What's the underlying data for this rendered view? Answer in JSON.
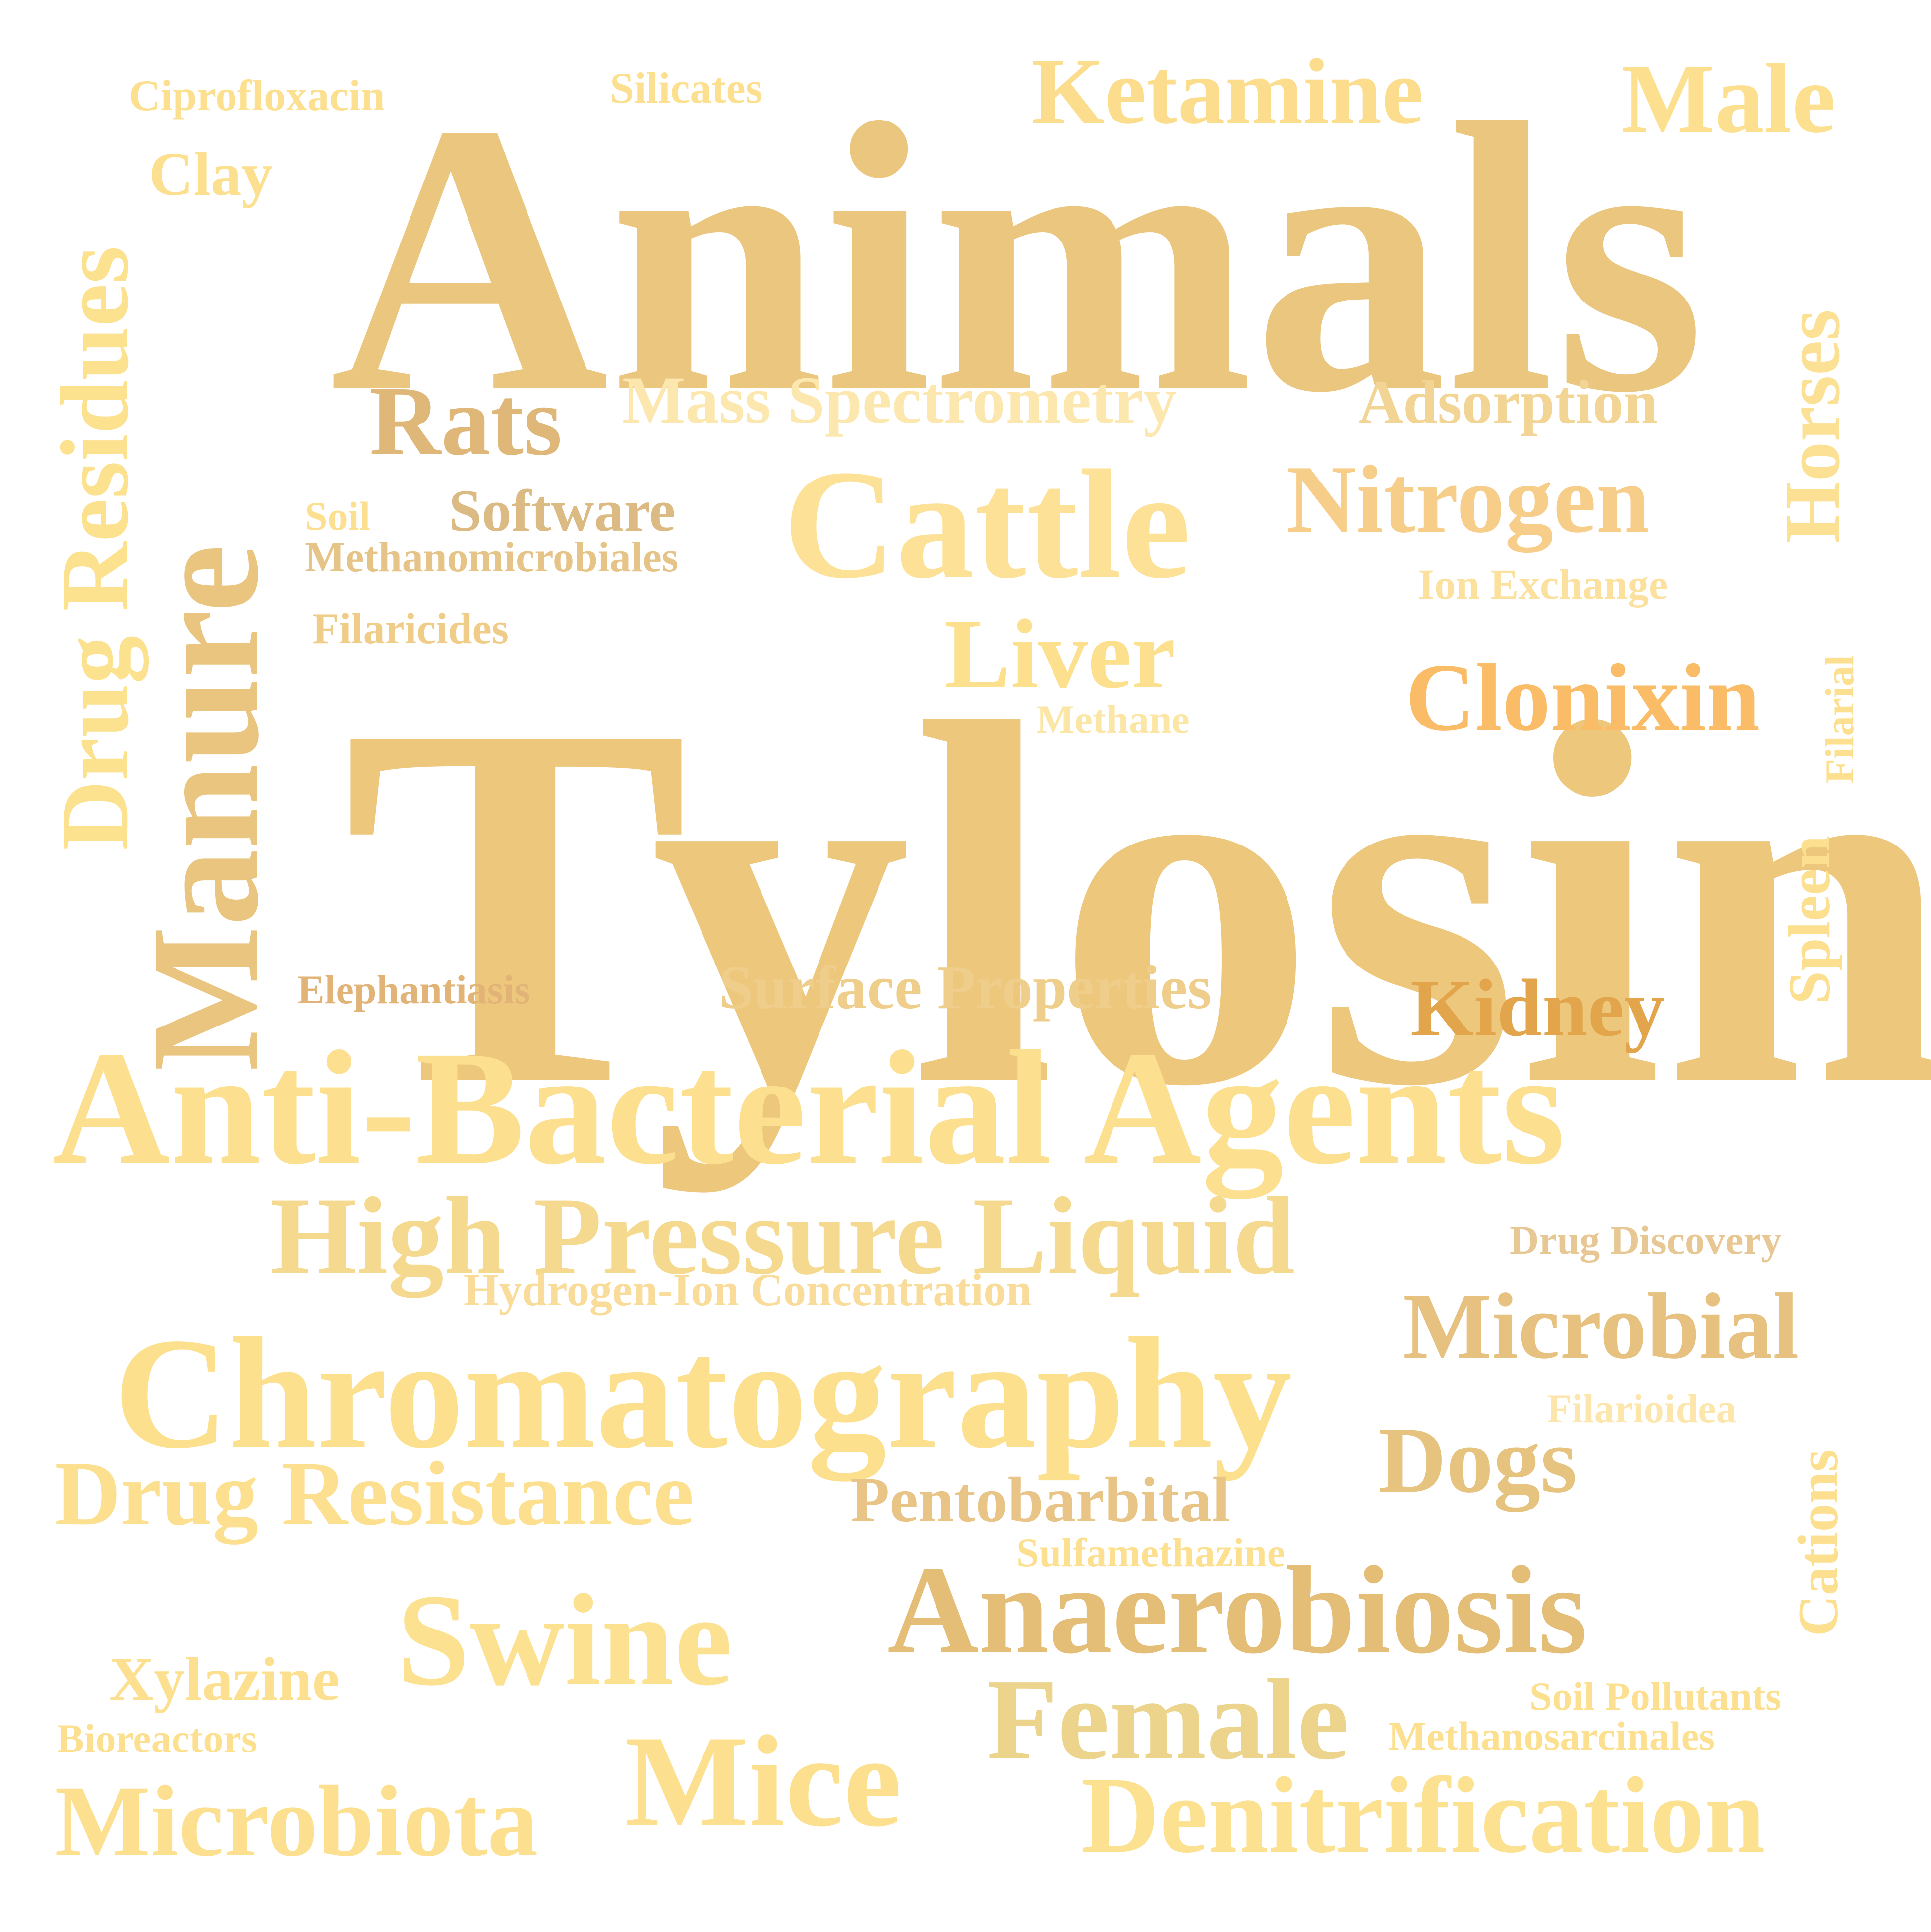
{
  "words": [
    {
      "id": "tylosin",
      "text": "Tylosin",
      "color": "#ECC77C"
    },
    {
      "id": "animals",
      "text": "Animals",
      "color": "#EBC67E"
    },
    {
      "id": "anti-bacterial-agents",
      "text": "Anti-Bacterial Agents",
      "color": "#FCE08F"
    },
    {
      "id": "manure",
      "text": "Manure",
      "color": "#E9C57F"
    },
    {
      "id": "chromatography",
      "text": "Chromatography",
      "color": "#FCE08E"
    },
    {
      "id": "high-pressure-liquid",
      "text": "High Pressure Liquid",
      "color": "#F5D98F"
    },
    {
      "id": "anaerobiosis",
      "text": "Anaerobiosis",
      "color": "#E4BE76"
    },
    {
      "id": "cattle",
      "text": "Cattle",
      "color": "#FCE196"
    },
    {
      "id": "swine",
      "text": "Swine",
      "color": "#FCE190"
    },
    {
      "id": "mice",
      "text": "Mice",
      "color": "#FCE08F"
    },
    {
      "id": "drug-residues",
      "text": "Drug Residues",
      "color": "#FCE18E"
    },
    {
      "id": "denitrification",
      "text": "Denitrification",
      "color": "#FCE190"
    },
    {
      "id": "microbiota",
      "text": "Microbiota",
      "color": "#FCE08F"
    },
    {
      "id": "female",
      "text": "Female",
      "color": "#ECD48D"
    },
    {
      "id": "ketamine",
      "text": "Ketamine",
      "color": "#FCDD8D"
    },
    {
      "id": "male",
      "text": "Male",
      "color": "#FCE08F"
    },
    {
      "id": "drug-resistance",
      "text": "Drug Resistance",
      "color": "#FCE08F"
    },
    {
      "id": "rats",
      "text": "Rats",
      "color": "#DFB779"
    },
    {
      "id": "nitrogen",
      "text": "Nitrogen",
      "color": "#F7CD8A"
    },
    {
      "id": "liver",
      "text": "Liver",
      "color": "#FCE08D"
    },
    {
      "id": "clonixin",
      "text": "Clonixin",
      "color": "#FABC66"
    },
    {
      "id": "microbial",
      "text": "Microbial",
      "color": "#E6C17F"
    },
    {
      "id": "mass-spectrometry",
      "text": "Mass Spectrometry",
      "color": "#FCE7AE"
    },
    {
      "id": "kidney",
      "text": "Kidney",
      "color": "#E3A54B"
    },
    {
      "id": "dogs",
      "text": "Dogs",
      "color": "#E6C37F"
    },
    {
      "id": "horses",
      "text": "Horses",
      "color": "#FCE093"
    },
    {
      "id": "surface-properties",
      "text": "Surface Properties",
      "color": "#EFCD8B"
    },
    {
      "id": "pentobarbital",
      "text": "Pentobarbital",
      "color": "#E9C487"
    },
    {
      "id": "adsorption",
      "text": "Adsorption",
      "color": "#F2D595"
    },
    {
      "id": "software",
      "text": "Software",
      "color": "#DCBA83"
    },
    {
      "id": "xylazine",
      "text": "Xylazine",
      "color": "#FCE08F"
    },
    {
      "id": "spleen",
      "text": "Spleen",
      "color": "#FCE08F"
    },
    {
      "id": "clay",
      "text": "Clay",
      "color": "#FCE08F"
    },
    {
      "id": "cations",
      "text": "Cations",
      "color": "#FCE08F"
    },
    {
      "id": "ciprofloxacin",
      "text": "Ciprofloxacin",
      "color": "#FCE08F"
    },
    {
      "id": "silicates",
      "text": "Silicates",
      "color": "#FCE08F"
    },
    {
      "id": "hydrogen-ion-concentration",
      "text": "Hydrogen-Ion Concentration",
      "color": "#F9DB9A"
    },
    {
      "id": "drug-discovery",
      "text": "Drug Discovery",
      "color": "#E7C894"
    },
    {
      "id": "filarioidea",
      "text": "Filarioidea",
      "color": "#FCE6AC"
    },
    {
      "id": "sulfamethazine",
      "text": "Sulfamethazine",
      "color": "#FCE08F"
    },
    {
      "id": "methanomicrobiales",
      "text": "Methanomicrobiales",
      "color": "#E6C386"
    },
    {
      "id": "ion-exchange",
      "text": "Ion Exchange",
      "color": "#FCE09E"
    },
    {
      "id": "filaricides",
      "text": "Filaricides",
      "color": "#EFCC87"
    },
    {
      "id": "methane",
      "text": "Methane",
      "color": "#FCE6A5"
    },
    {
      "id": "elephantiasis",
      "text": "Elephantiasis",
      "color": "#E2B377"
    },
    {
      "id": "soil",
      "text": "Soil",
      "color": "#FCE08F"
    },
    {
      "id": "soil-pollutants",
      "text": "Soil Pollutants",
      "color": "#FCE08F"
    },
    {
      "id": "methanosarcinales",
      "text": "Methanosarcinales",
      "color": "#FCE08F"
    },
    {
      "id": "bioreactors",
      "text": "Bioreactors",
      "color": "#FCE08F"
    },
    {
      "id": "filarial",
      "text": "Filarial",
      "color": "#FCE08F"
    }
  ]
}
